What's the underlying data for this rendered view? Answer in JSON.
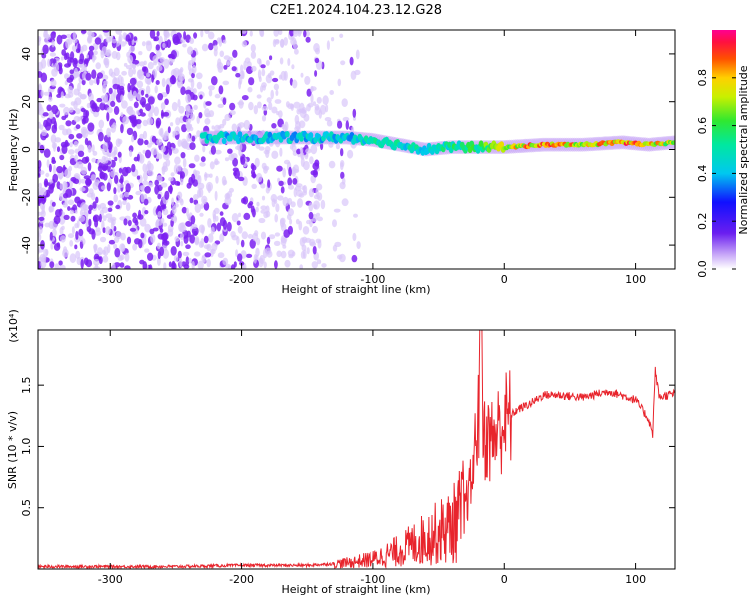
{
  "title": "C2E1.2024.104.23.12.G28",
  "colors": {
    "series": "#e8242c",
    "spectro_fringe": "#7a1ff0",
    "axis": "#000000"
  },
  "chart_data": [
    {
      "type": "heatmap",
      "xlabel": "Height of straight line (km)",
      "ylabel": "Frequency (Hz)",
      "xlim": [
        -355,
        130
      ],
      "ylim": [
        -50,
        50
      ],
      "xticks": [
        -300,
        -200,
        -100,
        0,
        100
      ],
      "yticks": [
        -40,
        -20,
        0,
        20,
        40
      ],
      "grid": false,
      "colorbar": {
        "label": "Normalized spectral amplitude",
        "range": [
          0.0,
          1.0
        ],
        "ticks": [
          "0.0",
          "0.2",
          "0.4",
          "0.6",
          "0.8"
        ],
        "colormap": "rainbow"
      },
      "ridge": {
        "x": [
          -230,
          -200,
          -150,
          -120,
          -100,
          -80,
          -60,
          -40,
          -20,
          0,
          30,
          60,
          90,
          110,
          130
        ],
        "freq_hz": [
          5,
          5,
          5,
          5,
          4,
          2,
          0,
          1,
          1,
          1,
          2,
          2,
          3,
          2,
          3
        ],
        "amplitude": [
          0.45,
          0.45,
          0.45,
          0.45,
          0.5,
          0.5,
          0.5,
          0.55,
          0.6,
          0.75,
          0.9,
          0.8,
          0.9,
          0.85,
          0.7
        ]
      },
      "noise_region": {
        "x_range": [
          -355,
          -130
        ],
        "amplitude": 0.08
      }
    },
    {
      "type": "line",
      "xlabel": "Height of straight line (km)",
      "ylabel": "SNR (10 * v/v)",
      "scale_label": "(x10⁴)",
      "xlim": [
        -355,
        130
      ],
      "ylim": [
        0,
        1.95
      ],
      "xticks": [
        -300,
        -200,
        -100,
        0,
        100
      ],
      "yticks": [
        0.5,
        1.0,
        1.5
      ],
      "grid": false,
      "series": [
        {
          "x": [
            -355,
            -300,
            -250,
            -200,
            -150,
            -120,
            -100,
            -80,
            -60,
            -40,
            -30,
            -25,
            -22,
            -20,
            -17,
            -10,
            0,
            10,
            20,
            30,
            40,
            60,
            80,
            100,
            110,
            113,
            115,
            118,
            125,
            130
          ],
          "values": [
            0.02,
            0.02,
            0.02,
            0.03,
            0.03,
            0.05,
            0.08,
            0.15,
            0.25,
            0.35,
            0.5,
            0.7,
            1.0,
            1.3,
            1.1,
            1.05,
            1.2,
            1.3,
            1.35,
            1.42,
            1.42,
            1.4,
            1.45,
            1.38,
            1.22,
            1.1,
            1.62,
            1.4,
            1.42,
            1.43
          ]
        }
      ]
    }
  ]
}
